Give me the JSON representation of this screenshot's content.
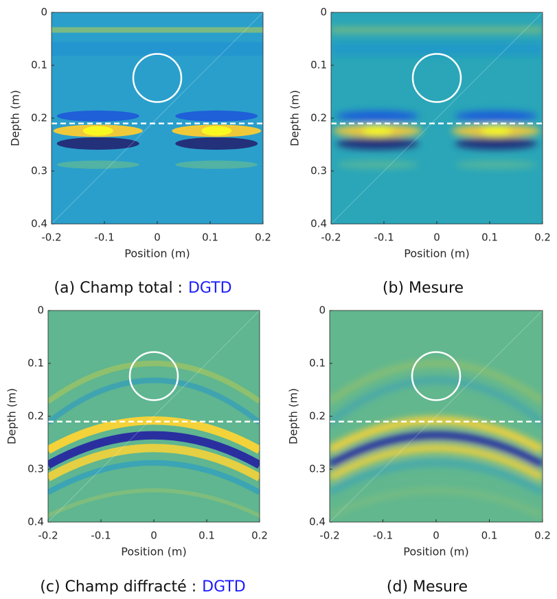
{
  "chart_data": [
    {
      "type": "heatmap",
      "caption": "(a) Champ total :",
      "caption_highlight": "DGTD",
      "xlabel": "Position (m)",
      "ylabel": "Depth (m)",
      "xlim": [
        -0.2,
        0.2
      ],
      "ylim": [
        0,
        0.4
      ],
      "xticks": [
        -0.2,
        -0.1,
        0,
        0.1,
        0.2
      ],
      "yticks": [
        0,
        0.1,
        0.2,
        0.3,
        0.4
      ],
      "hline": 0.21
    },
    {
      "type": "heatmap",
      "caption": "(b) Mesure",
      "xlabel": "Position (m)",
      "ylabel": "Depth (m)",
      "xlim": [
        -0.2,
        0.2
      ],
      "ylim": [
        0,
        0.4
      ],
      "xticks": [
        -0.2,
        -0.1,
        0,
        0.1,
        0.2
      ],
      "yticks": [
        0,
        0.1,
        0.2,
        0.3,
        0.4
      ],
      "hline": 0.21
    },
    {
      "type": "heatmap",
      "caption": "(c) Champ diffracté :",
      "caption_highlight": "DGTD",
      "xlabel": "Position (m)",
      "ylabel": "Depth (m)",
      "xlim": [
        -0.2,
        0.2
      ],
      "ylim": [
        0,
        0.4
      ],
      "xticks": [
        -0.2,
        -0.1,
        0,
        0.1,
        0.2
      ],
      "yticks": [
        0,
        0.1,
        0.2,
        0.3,
        0.4
      ],
      "hline": 0.21
    },
    {
      "type": "heatmap",
      "caption": "(d) Mesure",
      "xlabel": "Position (m)",
      "ylabel": "Depth (m)",
      "xlim": [
        -0.2,
        0.2
      ],
      "ylim": [
        0,
        0.4
      ],
      "xticks": [
        -0.2,
        -0.1,
        0,
        0.1,
        0.2
      ],
      "yticks": [
        0,
        0.1,
        0.2,
        0.3,
        0.4
      ],
      "hline": 0.21
    }
  ]
}
